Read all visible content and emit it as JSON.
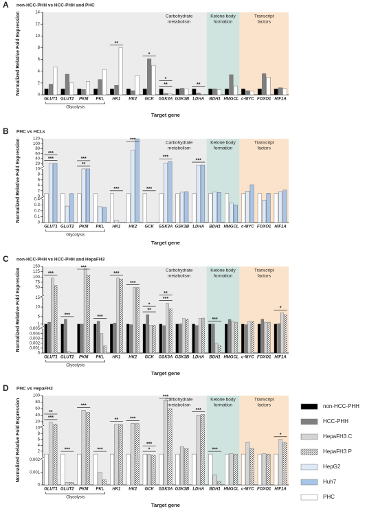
{
  "chart_data": [
    {
      "type": "bar",
      "panel_label": "A",
      "title": "non-HCC-PHH vs HCC-PHH and PHC",
      "ylabel": "Normalized Relative Fold Expression",
      "xlabel": "Target gene",
      "categories": [
        "GLUT1",
        "GLUT2",
        "PKM",
        "PKL",
        "HK1",
        "HK2",
        "GCK",
        "GSK3A",
        "GSK3B",
        "LDHA",
        "BDH1",
        "HMGCL",
        "c-MYC",
        "FOXO1",
        "HIF1A"
      ],
      "series": [
        {
          "name": "non-HCC-PHH",
          "color": "#000000",
          "values": [
            1,
            1,
            1,
            1,
            1,
            1,
            1,
            1,
            1,
            1,
            1,
            1,
            1,
            1,
            1
          ]
        },
        {
          "name": "HCC-PHH",
          "color": "#808080",
          "values": [
            1.8,
            3.5,
            0.9,
            2.6,
            1.6,
            0.7,
            6.1,
            0.2,
            1.1,
            0.3,
            1.0,
            3.4,
            0.7,
            3.6,
            1.2
          ]
        },
        {
          "name": "PHC",
          "color": "#ffffff",
          "values": [
            4.7,
            2.0,
            2.3,
            4.3,
            8.0,
            3.3,
            5.0,
            0.2,
            1.0,
            0.1,
            0.9,
            1.5,
            0.6,
            3.0,
            1.1
          ]
        }
      ],
      "segments": [
        {
          "ylim": [
            0,
            14
          ],
          "yticks": [
            0,
            2,
            4,
            6,
            8,
            10,
            12,
            14
          ]
        }
      ],
      "regions": [
        {
          "label": [
            "Carbohydrate",
            "metabolism"
          ],
          "from": "GLUT1",
          "to": "LDHA",
          "color": "#ececec"
        },
        {
          "label": [
            "Ketone body",
            "formation"
          ],
          "from": "BDH1",
          "to": "HMGCL",
          "color": "#cfe3df"
        },
        {
          "label": [
            "Transcript",
            "factors"
          ],
          "from": "c-MYC",
          "to": "HIF1A",
          "color": "#fbe3cb"
        }
      ],
      "bracket": {
        "label": "Glycolysis",
        "from": "GLUT1",
        "to": "PKL"
      },
      "annotations": [
        {
          "category": "HK1",
          "labels": [
            "**"
          ]
        },
        {
          "category": "GCK",
          "labels": [
            "*"
          ]
        },
        {
          "category": "GSK3A",
          "labels": [
            "**",
            "*"
          ]
        },
        {
          "category": "LDHA",
          "labels": [
            "**"
          ]
        }
      ]
    },
    {
      "type": "bar",
      "panel_label": "B",
      "title": "PHC vs HCLs",
      "ylabel": "Normalized Relative Fold Expression",
      "xlabel": "Target gene",
      "categories": [
        "GLUT1",
        "GLUT2",
        "PKM",
        "PKL",
        "HK1",
        "HK2",
        "GCK",
        "GSK3A",
        "GSK3B",
        "LDHA",
        "BDH1",
        "HMGCL",
        "c-MYC",
        "FOXO1",
        "HIF1A"
      ],
      "series": [
        {
          "name": "PHC",
          "color": "#ffffff",
          "values": [
            1,
            1,
            1,
            1,
            1,
            1,
            1,
            1,
            1,
            1,
            1,
            1,
            1,
            1,
            1
          ]
        },
        {
          "name": "HepG2",
          "color": "#dde9f7",
          "values": [
            19,
            0.28,
            10,
            0.27,
            0.04,
            75,
            0.003,
            23,
            1.5,
            14,
            1.6,
            0.33,
            1.9,
            0.38,
            1.7
          ]
        },
        {
          "name": "Huh7",
          "color": "#a8c5e8",
          "values": [
            22,
            1,
            10,
            0.26,
            0.003,
            120,
            0.002,
            28,
            1.7,
            15,
            1.4,
            0.3,
            4.2,
            1.1,
            2.3
          ]
        }
      ],
      "segments": [
        {
          "ylim": [
            0,
            0.4
          ],
          "yticks": [
            0,
            0.1,
            0.2,
            0.3,
            0.4
          ]
        },
        {
          "ylim": [
            0,
            10
          ],
          "yticks": [
            0,
            2,
            4,
            6,
            8,
            10
          ]
        },
        {
          "ylim": [
            10,
            120
          ],
          "yticks": [
            20,
            40,
            60,
            80,
            100,
            120
          ]
        }
      ],
      "regions": [
        {
          "label": [
            "Carbohydrate",
            "metabolism"
          ],
          "from": "GLUT1",
          "to": "LDHA",
          "color": "#ececec"
        },
        {
          "label": [
            "Ketone body",
            "formation"
          ],
          "from": "BDH1",
          "to": "HMGCL",
          "color": "#cfe3df"
        },
        {
          "label": [
            "Transcript",
            "factors"
          ],
          "from": "c-MYC",
          "to": "HIF1A",
          "color": "#fbe3cb"
        }
      ],
      "bracket": {
        "label": "Glycolysis",
        "from": "GLUT1",
        "to": "PKL"
      },
      "annotations": [
        {
          "category": "GLUT1",
          "labels": [
            "***",
            "***"
          ]
        },
        {
          "category": "PKM",
          "labels": [
            "**",
            "***"
          ]
        },
        {
          "category": "HK1",
          "labels": [
            "***"
          ]
        },
        {
          "category": "HK2",
          "labels": [
            "***"
          ]
        },
        {
          "category": "GCK",
          "labels": [
            "***"
          ]
        },
        {
          "category": "GSK3A",
          "labels": [
            "***"
          ]
        },
        {
          "category": "LDHA",
          "labels": [
            "***"
          ]
        }
      ]
    },
    {
      "type": "bar",
      "panel_label": "C",
      "title": "non-HCC-PHH vs HCC-PHH and HepaFH3",
      "ylabel": "Normalized Relative Fold Expression",
      "xlabel": "Target gene",
      "categories": [
        "GLUT1",
        "GLUT2",
        "PKM",
        "PKL",
        "HK1",
        "HK2",
        "GCK",
        "GSK3A",
        "GSK3B",
        "LDHA",
        "BDH1",
        "HMGCL",
        "c-MYC",
        "FOXO1",
        "HIF1A"
      ],
      "series": [
        {
          "name": "non-HCC-PHH",
          "color": "#000000",
          "values": [
            1,
            1,
            1,
            1,
            1,
            1,
            1,
            1,
            1,
            1,
            1,
            1,
            1,
            1,
            1
          ]
        },
        {
          "name": "HCC-PHH",
          "color": "#808080",
          "values": [
            2,
            3.5,
            1,
            2.5,
            1.6,
            0.7,
            6,
            0.2,
            1.1,
            0.3,
            1,
            3.4,
            0.7,
            3.6,
            1.2
          ]
        },
        {
          "name": "HepaFH3 C",
          "color": "#ffffff",
          "pattern": "vertical",
          "values": [
            95,
            0.0003,
            140,
            0.004,
            95,
            50,
            0.5,
            12,
            4,
            4,
            0.002,
            2.5,
            2.5,
            2,
            7
          ]
        },
        {
          "name": "HepaFH3 P",
          "color": "#ffffff",
          "pattern": "diagonal",
          "values": [
            60,
            0.0001,
            110,
            0.0015,
            90,
            50,
            0.4,
            9,
            3.5,
            4.2,
            0.0015,
            2,
            2.3,
            2,
            6
          ]
        }
      ],
      "segments": [
        {
          "ylim": [
            0,
            0.005
          ],
          "yticks": [
            0,
            0.001,
            0.002,
            0.003,
            0.004,
            0.005
          ]
        },
        {
          "ylim": [
            0,
            15
          ],
          "yticks": [
            1,
            5,
            10,
            15
          ]
        },
        {
          "ylim": [
            15,
            150
          ],
          "yticks": [
            50,
            75,
            100,
            125,
            150
          ]
        }
      ],
      "regions": [
        {
          "label": [
            "Carbohydrate",
            "metabolism"
          ],
          "from": "GLUT1",
          "to": "LDHA",
          "color": "#ececec"
        },
        {
          "label": [
            "Ketone body",
            "formation"
          ],
          "from": "BDH1",
          "to": "HMGCL",
          "color": "#cfe3df"
        },
        {
          "label": [
            "Transcript",
            "factors"
          ],
          "from": "c-MYC",
          "to": "HIF1A",
          "color": "#fbe3cb"
        }
      ],
      "bracket": {
        "label": "Glycolysis",
        "from": "GLUT1",
        "to": "PKL"
      },
      "annotations": [
        {
          "category": "GLUT1",
          "labels": [
            "***"
          ]
        },
        {
          "category": "GLUT2",
          "labels": [
            "***"
          ]
        },
        {
          "category": "PKM",
          "labels": [
            "***"
          ]
        },
        {
          "category": "PKL",
          "labels": [
            "***"
          ]
        },
        {
          "category": "HK1",
          "labels": [
            "***"
          ]
        },
        {
          "category": "HK2",
          "labels": [
            "***"
          ]
        },
        {
          "category": "GCK",
          "labels": [
            "**",
            "*"
          ]
        },
        {
          "category": "GSK3A",
          "labels": [
            "***",
            "**"
          ]
        },
        {
          "category": "BDH1",
          "labels": [
            "***"
          ]
        },
        {
          "category": "HIF1A",
          "labels": [
            "*"
          ]
        }
      ]
    },
    {
      "type": "bar",
      "panel_label": "D",
      "title": "PHC vs HepaFH3",
      "ylabel": "Normalized Relative Fold Expression",
      "xlabel": "Target gene",
      "categories": [
        "GLUT1",
        "GLUT2",
        "PKM",
        "PKL",
        "HK1",
        "HK2",
        "GCK",
        "GSK3A",
        "GSK3B",
        "LDHA",
        "BDH1",
        "HMGCL",
        "c-MYC",
        "FOXO1",
        "HIF1A"
      ],
      "series": [
        {
          "name": "PHC",
          "color": "#ffffff",
          "values": [
            1,
            1,
            1,
            1,
            1,
            1,
            1,
            1,
            1,
            1,
            1,
            1,
            1,
            1,
            1
          ]
        },
        {
          "name": "HepaFH3 C",
          "color": "#ffffff",
          "pattern": "vertical",
          "values": [
            18,
            0.0002,
            55,
            0.001,
            12,
            15,
            0.9,
            85,
            3.5,
            40,
            0.0008,
            1.1,
            5,
            1.1,
            6
          ]
        },
        {
          "name": "HepaFH3 P",
          "color": "#ffffff",
          "pattern": "diagonal",
          "values": [
            12,
            0.0002,
            48,
            0.0004,
            11,
            14,
            0.6,
            60,
            3,
            42,
            0.0003,
            1,
            3,
            1,
            5
          ]
        }
      ],
      "segments": [
        {
          "ylim": [
            0,
            0.002
          ],
          "yticks": [
            0,
            0.001,
            0.002
          ]
        },
        {
          "ylim": [
            0,
            10
          ],
          "yticks": [
            2,
            4,
            6,
            8,
            10
          ]
        },
        {
          "ylim": [
            10,
            100
          ],
          "yticks": [
            20,
            40,
            60,
            80,
            100
          ]
        }
      ],
      "regions": [
        {
          "label": [
            "Carbohydrate",
            "metabolism"
          ],
          "from": "GLUT1",
          "to": "LDHA",
          "color": "#ececec"
        },
        {
          "label": [
            "Ketone body",
            "formation"
          ],
          "from": "BDH1",
          "to": "HMGCL",
          "color": "#cfe3df"
        },
        {
          "label": [
            "Transcript",
            "factors"
          ],
          "from": "c-MYC",
          "to": "HIF1A",
          "color": "#fbe3cb"
        }
      ],
      "bracket": {
        "label": "Glycolysis",
        "from": "GLUT1",
        "to": "PKL"
      },
      "annotations": [
        {
          "category": "GLUT1",
          "labels": [
            "***",
            "**"
          ]
        },
        {
          "category": "GLUT2",
          "labels": [
            "***"
          ]
        },
        {
          "category": "PKM",
          "labels": [
            "***"
          ]
        },
        {
          "category": "PKL",
          "labels": [
            "***"
          ]
        },
        {
          "category": "HK1",
          "labels": [
            "**"
          ]
        },
        {
          "category": "HK2",
          "labels": [
            "***"
          ]
        },
        {
          "category": "GCK",
          "labels": [
            "*",
            "***"
          ]
        },
        {
          "category": "GSK3A",
          "labels": [
            "***"
          ]
        },
        {
          "category": "LDHA",
          "labels": [
            "***"
          ]
        },
        {
          "category": "BDH1",
          "labels": [
            "***"
          ]
        },
        {
          "category": "HIF1A",
          "labels": [
            "*"
          ]
        }
      ]
    }
  ],
  "legend": [
    {
      "name": "non-HCC-PHH",
      "color": "#000000"
    },
    {
      "name": "HCC-PHH",
      "color": "#808080"
    },
    {
      "name": "HepaFH3 C",
      "color": "#ffffff",
      "pattern": "vertical"
    },
    {
      "name": "HepaFH3 P",
      "color": "#ffffff",
      "pattern": "diagonal"
    },
    {
      "name": "HepG2",
      "color": "#dde9f7"
    },
    {
      "name": "Huh7",
      "color": "#a8c5e8"
    },
    {
      "name": "PHC",
      "color": "#ffffff"
    }
  ]
}
